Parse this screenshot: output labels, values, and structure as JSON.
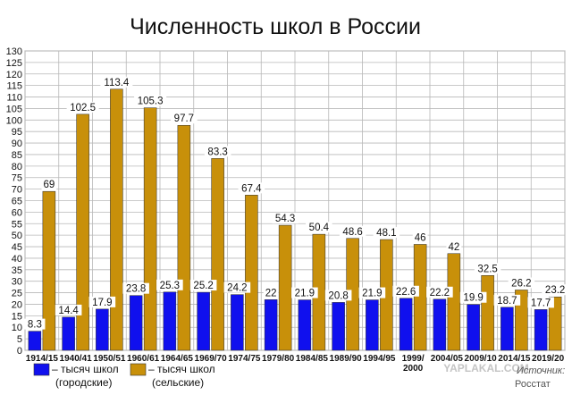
{
  "chart_data": {
    "type": "bar",
    "title": "Численность школ в России",
    "categories": [
      "1914/15",
      "1940/41",
      "1950/51",
      "1960/61",
      "1964/65",
      "1969/70",
      "1974/75",
      "1979/80",
      "1984/85",
      "1989/90",
      "1994/95",
      "1999/ 2000",
      "2004/05",
      "2009/10",
      "2014/15",
      "2019/20"
    ],
    "series": [
      {
        "name": "– тысяч школ (городские)",
        "color": "#1010ee",
        "values": [
          8.3,
          14.4,
          17.9,
          23.8,
          25.3,
          25.2,
          24.2,
          22,
          21.9,
          20.8,
          21.9,
          22.6,
          22.2,
          19.9,
          18.7,
          17.7
        ]
      },
      {
        "name": "– тысяч школ (сельские)",
        "color": "#c8900a",
        "values": [
          69,
          102.5,
          113.4,
          105.3,
          97.7,
          83.3,
          67.4,
          54.3,
          50.4,
          48.6,
          48.1,
          46,
          42,
          32.5,
          26.2,
          23.2
        ]
      }
    ],
    "legend": [
      {
        "line1": "– тысяч школ",
        "line2": "(городские)"
      },
      {
        "line1": "– тысяч школ",
        "line2": "(сельские)"
      }
    ],
    "ylim": [
      0,
      130
    ],
    "ytick_step": 5,
    "grid": true,
    "legend_position": "bottom-left"
  },
  "watermark": "YAPLAKAL.COM",
  "source": {
    "line1": "Источник:",
    "line2": "Росстат"
  }
}
